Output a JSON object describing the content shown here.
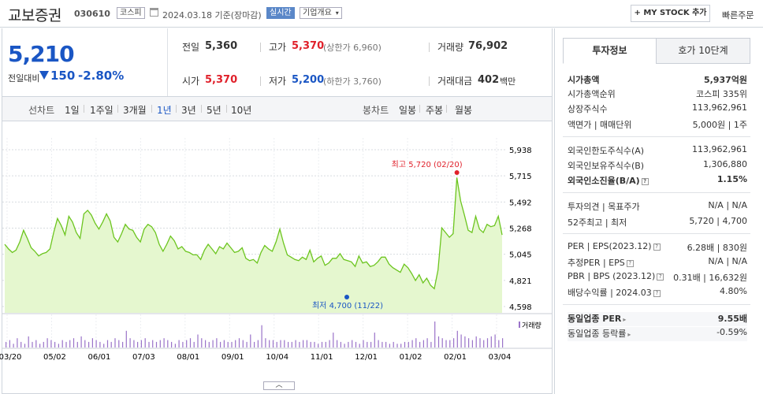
{
  "header": {
    "stock_name": "교보증권",
    "stock_code": "030610",
    "market_badge": "코스피",
    "date_text": "2024.03.18  기준(장마감)",
    "realtime_badge": "실시간",
    "company_overview": "기업개요",
    "mystock_button": "+ MY STOCK 추가",
    "quick_order": "빠른주문"
  },
  "price": {
    "current": "5,210",
    "prev_label": "전일대비",
    "change": "150",
    "change_pct": "-2.80%",
    "direction": "down"
  },
  "quotes": {
    "prev_close_label": "전일",
    "prev_close": "5,360",
    "high_label": "고가",
    "high": "5,370",
    "upper_limit": "(상한가 6,960)",
    "volume_label": "거래량",
    "volume": "76,902",
    "open_label": "시가",
    "open": "5,370",
    "low_label": "저가",
    "low": "5,200",
    "lower_limit": "(하한가 3,760)",
    "amount_label": "거래대금",
    "amount": "402",
    "amount_unit": "백만"
  },
  "chart_tabs": {
    "line_label": "선차트",
    "periods": [
      "1일",
      "1주일",
      "3개월",
      "1년",
      "3년",
      "5년",
      "10년"
    ],
    "active_period": "1년",
    "candle_label": "봉차트",
    "candle_periods": [
      "일봉",
      "주봉",
      "월봉"
    ]
  },
  "chart_data": {
    "type": "area",
    "x_tick_labels": [
      "03/20",
      "05/02",
      "06/01",
      "07/03",
      "08/01",
      "09/01",
      "10/04",
      "11/01",
      "12/01",
      "01/02",
      "02/01",
      "03/04"
    ],
    "y_tick_labels": [
      "5,938",
      "5,715",
      "5,492",
      "5,268",
      "5,045",
      "4,821",
      "4,598"
    ],
    "ylim": [
      4598,
      5938
    ],
    "values": [
      5130,
      5090,
      5060,
      5080,
      5150,
      5250,
      5180,
      5100,
      5070,
      5030,
      5050,
      5060,
      5090,
      5230,
      5350,
      5290,
      5210,
      5370,
      5320,
      5230,
      5180,
      5390,
      5420,
      5380,
      5310,
      5260,
      5320,
      5390,
      5330,
      5190,
      5150,
      5220,
      5300,
      5260,
      5250,
      5190,
      5150,
      5260,
      5300,
      5280,
      5230,
      5130,
      5070,
      5130,
      5200,
      5160,
      5090,
      5110,
      5070,
      5060,
      5040,
      5040,
      5000,
      5080,
      5130,
      5090,
      5050,
      5110,
      5090,
      5140,
      5100,
      5060,
      5070,
      5100,
      5010,
      4990,
      5000,
      4970,
      5060,
      5120,
      5090,
      5070,
      5150,
      5260,
      5140,
      5040,
      5020,
      5000,
      4990,
      5020,
      5000,
      5080,
      4980,
      5010,
      5030,
      4950,
      4970,
      5010,
      5010,
      5050,
      5000,
      4990,
      4980,
      4940,
      5030,
      4970,
      4980,
      4940,
      4950,
      4980,
      5020,
      5020,
      4960,
      4930,
      4910,
      4890,
      4960,
      4930,
      4880,
      4820,
      4870,
      4800,
      4840,
      4780,
      4750,
      4910,
      5270,
      5230,
      5190,
      5220,
      5700,
      5500,
      5380,
      5250,
      5230,
      5370,
      5260,
      5230,
      5300,
      5280,
      5290,
      5370,
      5210
    ],
    "max_label": "최고  5,720 (02/20)",
    "min_label": "최저  4,700 (11/22)",
    "volume_label": "거래량",
    "volume_values": [
      3,
      4,
      2,
      5,
      3,
      2,
      6,
      3,
      4,
      2,
      3,
      5,
      4,
      3,
      2,
      4,
      3,
      4,
      5,
      3,
      6,
      4,
      3,
      5,
      4,
      3,
      2,
      4,
      3,
      5,
      4,
      3,
      9,
      5,
      4,
      3,
      4,
      5,
      3,
      4,
      3,
      4,
      5,
      4,
      3,
      2,
      4,
      3,
      4,
      5,
      3,
      7,
      5,
      4,
      3,
      4,
      5,
      3,
      4,
      3,
      3,
      4,
      5,
      4,
      3,
      7,
      3,
      4,
      12,
      5,
      4,
      4,
      3,
      4,
      4,
      3,
      3,
      4,
      3,
      4,
      4,
      3,
      3,
      2,
      3,
      3,
      4,
      8,
      4,
      3,
      2,
      3,
      4,
      3,
      2,
      4,
      3,
      3,
      8,
      4,
      3,
      3,
      2,
      3,
      2,
      2,
      3,
      3,
      4,
      5,
      3,
      4,
      5,
      3,
      14,
      6,
      5,
      4,
      4,
      5,
      9,
      7,
      6,
      5,
      4,
      6,
      5,
      4,
      5,
      6,
      7,
      4,
      5
    ]
  },
  "invest_panel": {
    "tab_active": "투자정보",
    "tab_other": "호가 10단계",
    "market_cap_label": "시가총액",
    "market_cap": "5,937억원",
    "cap_rank_label": "시가총액순위",
    "cap_rank": "코스피 335위",
    "shares_label": "상장주식수",
    "shares": "113,962,961",
    "par_label": "액면가 | 매매단위",
    "par": "5,000원  |  1주",
    "foreign_limit_label": "외국인한도주식수(A)",
    "foreign_limit": "113,962,961",
    "foreign_hold_label": "외국인보유주식수(B)",
    "foreign_hold": "1,306,880",
    "foreign_ratio_label": "외국인소진율(B/A)",
    "foreign_ratio": "1.15%",
    "opinion_label": "투자의견 | 목표주가",
    "opinion": "N/A  |  N/A",
    "week52_label": "52주최고 | 최저",
    "week52": "5,720  |  4,700",
    "per_label": "PER | EPS(2023.12)",
    "per": "6.28배  |  830원",
    "est_per_label": "추정PER | EPS",
    "est_per": "N/A  |  N/A",
    "pbr_label": "PBR | BPS (2023.12)",
    "pbr": "0.31배  |  16,632원",
    "div_label": "배당수익률 | 2024.03",
    "div": "4.80%",
    "sector_per_label": "동일업종 PER",
    "sector_per": "9.55배",
    "sector_chg_label": "동일업종 등락률",
    "sector_chg": "-0.59%"
  },
  "colors": {
    "up": "#e0212b",
    "down": "#1a56c4",
    "line": "#6cc51f",
    "fill": "#e5f7cf"
  }
}
